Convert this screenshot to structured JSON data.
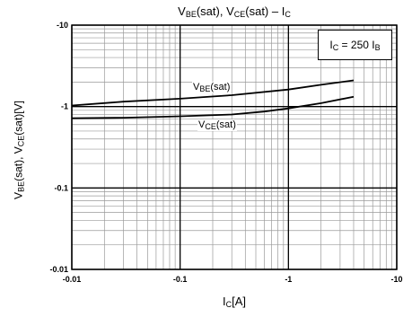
{
  "chart_data": {
    "type": "line",
    "title_parts": [
      "V",
      "BE",
      "(sat), V",
      "CE",
      "(sat)  –  I",
      "C"
    ],
    "xlabel_parts": [
      "I",
      "C",
      "[A]"
    ],
    "ylabel_parts": [
      "V",
      "BE",
      "(sat), V",
      "CE",
      "(sat)[V]"
    ],
    "x_scale": "log",
    "y_scale": "log",
    "xlim": [
      0.01,
      10
    ],
    "ylim": [
      0.01,
      10
    ],
    "x_ticks": [
      0.01,
      0.1,
      1,
      10
    ],
    "y_ticks": [
      0.01,
      0.1,
      1,
      10
    ],
    "x_tick_labels": [
      "-0.01",
      "-0.1",
      "-1",
      "-10"
    ],
    "y_tick_labels": [
      "-0.01",
      "-0.1",
      "-1",
      "-10"
    ],
    "grid": true,
    "condition_parts": [
      "I",
      "C",
      " = 250 I",
      "B"
    ],
    "legend_position": "top-right",
    "series": [
      {
        "name_parts": [
          "V",
          "BE",
          "(sat)"
        ],
        "x": [
          0.01,
          0.03,
          0.1,
          0.3,
          1,
          2,
          4
        ],
        "y": [
          1.03,
          1.15,
          1.25,
          1.38,
          1.62,
          1.85,
          2.1
        ]
      },
      {
        "name_parts": [
          "V",
          "CE",
          "(sat)"
        ],
        "x": [
          0.01,
          0.03,
          0.1,
          0.3,
          0.6,
          1,
          2,
          4
        ],
        "y": [
          0.72,
          0.73,
          0.76,
          0.8,
          0.87,
          0.95,
          1.1,
          1.32
        ]
      }
    ],
    "colors": {
      "line": "#000000",
      "grid_minor": "#9a9a9a",
      "grid_major": "#000000"
    }
  }
}
